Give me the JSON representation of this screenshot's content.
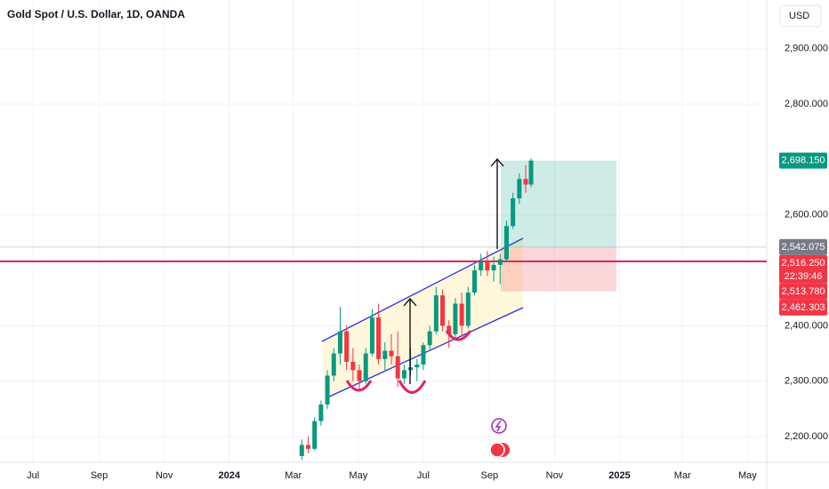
{
  "chart_data": {
    "type": "candlestick",
    "title": "Gold Spot / U.S. Dollar, 1D, OANDA",
    "currency": "USD",
    "xlim": [
      "2023-05-31",
      "2025-05-19"
    ],
    "xticks": [
      {
        "value": "2023-07-01",
        "label": "Jul"
      },
      {
        "value": "2023-09-01",
        "label": "Sep"
      },
      {
        "value": "2023-11-01",
        "label": "Nov"
      },
      {
        "value": "2024-01-01",
        "label": "2024"
      },
      {
        "value": "2024-03-01",
        "label": "Mar"
      },
      {
        "value": "2024-05-01",
        "label": "May"
      },
      {
        "value": "2024-07-01",
        "label": "Jul"
      },
      {
        "value": "2024-09-01",
        "label": "Sep"
      },
      {
        "value": "2024-11-01",
        "label": "Nov"
      },
      {
        "value": "2025-01-01",
        "label": "2025"
      },
      {
        "value": "2025-03-01",
        "label": "Mar"
      },
      {
        "value": "2025-05-01",
        "label": "May"
      }
    ],
    "ylim": [
      2153.6,
      2988
    ],
    "yticks": [
      {
        "value": 2200,
        "label": "2,200.000"
      },
      {
        "value": 2300,
        "label": "2,300.000"
      },
      {
        "value": 2400,
        "label": "2,400.000"
      },
      {
        "value": 2600,
        "label": "2,600.000"
      },
      {
        "value": 2800,
        "label": "2,800.000"
      },
      {
        "value": 2900,
        "label": "2,900.000"
      }
    ],
    "grid": true,
    "up_color": "#089981",
    "down_color": "#f23645",
    "candles": [
      {
        "date": "2024-03-09",
        "open": 2165,
        "high": 2195,
        "low": 2158,
        "close": 2185
      },
      {
        "date": "2024-03-15",
        "open": 2185,
        "high": 2200,
        "low": 2170,
        "close": 2178
      },
      {
        "date": "2024-03-21",
        "open": 2178,
        "high": 2235,
        "low": 2175,
        "close": 2228
      },
      {
        "date": "2024-03-27",
        "open": 2228,
        "high": 2265,
        "low": 2220,
        "close": 2258
      },
      {
        "date": "2024-04-02",
        "open": 2258,
        "high": 2320,
        "low": 2250,
        "close": 2310
      },
      {
        "date": "2024-04-08",
        "open": 2310,
        "high": 2360,
        "low": 2300,
        "close": 2350
      },
      {
        "date": "2024-04-14",
        "open": 2350,
        "high": 2434,
        "low": 2330,
        "close": 2390
      },
      {
        "date": "2024-04-20",
        "open": 2390,
        "high": 2400,
        "low": 2320,
        "close": 2335
      },
      {
        "date": "2024-04-26",
        "open": 2335,
        "high": 2360,
        "low": 2300,
        "close": 2320
      },
      {
        "date": "2024-05-02",
        "open": 2320,
        "high": 2330,
        "low": 2285,
        "close": 2300
      },
      {
        "date": "2024-05-08",
        "open": 2300,
        "high": 2360,
        "low": 2295,
        "close": 2350
      },
      {
        "date": "2024-05-14",
        "open": 2350,
        "high": 2430,
        "low": 2345,
        "close": 2415
      },
      {
        "date": "2024-05-20",
        "open": 2415,
        "high": 2440,
        "low": 2330,
        "close": 2340
      },
      {
        "date": "2024-05-26",
        "open": 2340,
        "high": 2370,
        "low": 2320,
        "close": 2355
      },
      {
        "date": "2024-06-01",
        "open": 2355,
        "high": 2385,
        "low": 2330,
        "close": 2345
      },
      {
        "date": "2024-06-07",
        "open": 2345,
        "high": 2390,
        "low": 2290,
        "close": 2305
      },
      {
        "date": "2024-06-13",
        "open": 2305,
        "high": 2330,
        "low": 2295,
        "close": 2320
      },
      {
        "date": "2024-06-19",
        "open": 2320,
        "high": 2360,
        "low": 2310,
        "close": 2325
      },
      {
        "date": "2024-06-25",
        "open": 2325,
        "high": 2340,
        "low": 2300,
        "close": 2330
      },
      {
        "date": "2024-07-01",
        "open": 2330,
        "high": 2370,
        "low": 2320,
        "close": 2365
      },
      {
        "date": "2024-07-07",
        "open": 2365,
        "high": 2400,
        "low": 2355,
        "close": 2390
      },
      {
        "date": "2024-07-13",
        "open": 2390,
        "high": 2470,
        "low": 2385,
        "close": 2455
      },
      {
        "date": "2024-07-19",
        "open": 2455,
        "high": 2465,
        "low": 2390,
        "close": 2400
      },
      {
        "date": "2024-07-25",
        "open": 2400,
        "high": 2410,
        "low": 2360,
        "close": 2385
      },
      {
        "date": "2024-07-31",
        "open": 2385,
        "high": 2450,
        "low": 2375,
        "close": 2440
      },
      {
        "date": "2024-08-06",
        "open": 2440,
        "high": 2460,
        "low": 2380,
        "close": 2400
      },
      {
        "date": "2024-08-12",
        "open": 2400,
        "high": 2470,
        "low": 2395,
        "close": 2460
      },
      {
        "date": "2024-08-18",
        "open": 2460,
        "high": 2510,
        "low": 2455,
        "close": 2500
      },
      {
        "date": "2024-08-24",
        "open": 2500,
        "high": 2530,
        "low": 2490,
        "close": 2515
      },
      {
        "date": "2024-08-30",
        "open": 2515,
        "high": 2535,
        "low": 2490,
        "close": 2500
      },
      {
        "date": "2024-09-05",
        "open": 2500,
        "high": 2525,
        "low": 2480,
        "close": 2510
      },
      {
        "date": "2024-09-11",
        "open": 2510,
        "high": 2530,
        "low": 2475,
        "close": 2520
      },
      {
        "date": "2024-09-17",
        "open": 2520,
        "high": 2590,
        "low": 2515,
        "close": 2580
      },
      {
        "date": "2024-09-23",
        "open": 2580,
        "high": 2640,
        "low": 2575,
        "close": 2630
      },
      {
        "date": "2024-09-29",
        "open": 2630,
        "high": 2675,
        "low": 2620,
        "close": 2665
      },
      {
        "date": "2024-10-05",
        "open": 2665,
        "high": 2690,
        "low": 2640,
        "close": 2655
      },
      {
        "date": "2024-10-10",
        "open": 2655,
        "high": 2702,
        "low": 2650,
        "close": 2698.15
      }
    ],
    "price_labels": [
      {
        "value": 2698.15,
        "label": "2,698.150",
        "color": "#089981"
      },
      {
        "value": 2542.075,
        "label": "2,542.075",
        "color": "#787b86"
      },
      {
        "value": 2516.25,
        "label": "2,516.250",
        "countdown": "22:39:46",
        "color": "#f23645"
      },
      {
        "value": 2513.78,
        "label": "2,513.780",
        "color": "#f23645"
      },
      {
        "value": 2462.303,
        "label": "2,462.303",
        "color": "#f23645"
      }
    ]
  }
}
